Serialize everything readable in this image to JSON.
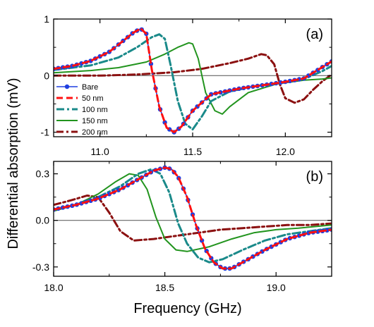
{
  "ylabel": "Differential absorption  (mV)",
  "xlabel": "Frequency (GHz)",
  "legend_position": "bottom-left of panel a",
  "chart_data": [
    {
      "type": "line",
      "panel_label": "(a)",
      "xlim": [
        10.75,
        12.25
      ],
      "ylim": [
        -1.08,
        1.0
      ],
      "xticks": [
        11.0,
        11.5,
        12.0
      ],
      "xtick_labels": [
        "11.0",
        "11.5",
        "12.0"
      ],
      "yticks": [
        -1,
        0,
        1
      ],
      "ytick_labels": [
        "-1",
        "0",
        "1"
      ],
      "zero_line": true,
      "series": [
        {
          "name": "Bare",
          "color": "#1f3fe0",
          "style": "line-markers",
          "x": [
            10.75,
            10.85,
            10.95,
            11.05,
            11.12,
            11.18,
            11.22,
            11.25,
            11.28,
            11.32,
            11.36,
            11.4,
            11.44,
            11.5,
            11.6,
            11.75,
            11.9,
            12.0,
            12.1,
            12.2,
            12.25
          ],
          "y": [
            0.12,
            0.17,
            0.26,
            0.42,
            0.6,
            0.76,
            0.83,
            0.74,
            0.1,
            -0.55,
            -0.92,
            -1.0,
            -0.9,
            -0.62,
            -0.33,
            -0.23,
            -0.16,
            -0.11,
            -0.05,
            0.15,
            0.25
          ]
        },
        {
          "name": "50 nm",
          "color": "#ff1010",
          "style": "dashed",
          "x": [
            10.75,
            10.85,
            10.95,
            11.05,
            11.12,
            11.18,
            11.22,
            11.25,
            11.28,
            11.32,
            11.36,
            11.4,
            11.44,
            11.5,
            11.6,
            11.75,
            11.9,
            12.0,
            12.1,
            12.2,
            12.25
          ],
          "y": [
            0.12,
            0.17,
            0.26,
            0.42,
            0.6,
            0.76,
            0.83,
            0.74,
            0.1,
            -0.55,
            -0.92,
            -1.0,
            -0.9,
            -0.62,
            -0.33,
            -0.23,
            -0.16,
            -0.11,
            -0.05,
            0.15,
            0.25
          ]
        },
        {
          "name": "100 nm",
          "color": "#1a8a8a",
          "style": "dash-dot",
          "x": [
            10.75,
            10.95,
            11.1,
            11.2,
            11.28,
            11.32,
            11.35,
            11.38,
            11.42,
            11.46,
            11.5,
            11.55,
            11.6,
            11.7,
            11.85,
            12.0,
            12.1,
            12.2,
            12.25
          ],
          "y": [
            0.1,
            0.18,
            0.32,
            0.5,
            0.68,
            0.73,
            0.65,
            0.2,
            -0.45,
            -0.85,
            -0.95,
            -0.72,
            -0.45,
            -0.28,
            -0.18,
            -0.12,
            -0.06,
            0.08,
            0.17
          ]
        },
        {
          "name": "150 nm",
          "color": "#22941e",
          "style": "solid",
          "x": [
            10.75,
            10.95,
            11.1,
            11.25,
            11.35,
            11.42,
            11.48,
            11.5,
            11.53,
            11.57,
            11.62,
            11.66,
            11.7,
            11.8,
            11.95,
            12.1,
            12.2,
            12.25
          ],
          "y": [
            0.05,
            0.09,
            0.14,
            0.24,
            0.38,
            0.5,
            0.58,
            0.56,
            0.3,
            -0.3,
            -0.62,
            -0.68,
            -0.55,
            -0.3,
            -0.15,
            -0.08,
            -0.06,
            -0.04
          ]
        },
        {
          "name": "200 nm",
          "color": "#8b1010",
          "style": "dash-dot-thick",
          "x": [
            10.75,
            11.0,
            11.2,
            11.4,
            11.55,
            11.7,
            11.8,
            11.87,
            11.9,
            11.94,
            11.97,
            12.0,
            12.05,
            12.1,
            12.15,
            12.2,
            12.25
          ],
          "y": [
            0.0,
            0.0,
            0.02,
            0.06,
            0.12,
            0.22,
            0.3,
            0.38,
            0.36,
            0.2,
            -0.15,
            -0.4,
            -0.48,
            -0.42,
            -0.25,
            -0.1,
            0.02
          ]
        }
      ]
    },
    {
      "type": "line",
      "panel_label": "(b)",
      "xlim": [
        18.0,
        19.25
      ],
      "ylim": [
        -0.36,
        0.38
      ],
      "xticks": [
        18.0,
        18.5,
        19.0
      ],
      "xtick_labels": [
        "18.0",
        "18.5",
        "19.0"
      ],
      "yticks": [
        -0.3,
        0.0,
        0.3
      ],
      "ytick_labels": [
        "-0.3",
        "0.0",
        "0.3"
      ],
      "zero_line": true,
      "series": [
        {
          "name": "Bare",
          "color": "#1f3fe0",
          "style": "line-markers",
          "x": [
            18.0,
            18.1,
            18.2,
            18.3,
            18.4,
            18.45,
            18.5,
            18.53,
            18.56,
            18.6,
            18.64,
            18.68,
            18.72,
            18.76,
            18.8,
            18.85,
            18.95,
            19.05,
            19.15,
            19.25
          ],
          "y": [
            0.07,
            0.1,
            0.14,
            0.2,
            0.28,
            0.32,
            0.34,
            0.33,
            0.28,
            0.15,
            -0.03,
            -0.18,
            -0.27,
            -0.31,
            -0.31,
            -0.27,
            -0.19,
            -0.12,
            -0.08,
            -0.06
          ]
        },
        {
          "name": "50 nm",
          "color": "#ff1010",
          "style": "dashed",
          "x": [
            18.0,
            18.1,
            18.2,
            18.3,
            18.4,
            18.45,
            18.5,
            18.53,
            18.56,
            18.6,
            18.64,
            18.68,
            18.72,
            18.76,
            18.8,
            18.85,
            18.95,
            19.05,
            19.15,
            19.25
          ],
          "y": [
            0.07,
            0.1,
            0.14,
            0.2,
            0.28,
            0.32,
            0.34,
            0.33,
            0.28,
            0.15,
            -0.03,
            -0.18,
            -0.27,
            -0.31,
            -0.31,
            -0.27,
            -0.19,
            -0.12,
            -0.08,
            -0.06
          ]
        },
        {
          "name": "100 nm",
          "color": "#1a8a8a",
          "style": "dash-dot",
          "x": [
            18.0,
            18.1,
            18.2,
            18.3,
            18.38,
            18.44,
            18.48,
            18.52,
            18.56,
            18.6,
            18.65,
            18.7,
            18.76,
            18.85,
            18.95,
            19.05,
            19.15,
            19.25
          ],
          "y": [
            0.07,
            0.1,
            0.15,
            0.22,
            0.3,
            0.33,
            0.3,
            0.18,
            -0.02,
            -0.15,
            -0.24,
            -0.27,
            -0.25,
            -0.19,
            -0.13,
            -0.09,
            -0.07,
            -0.05
          ]
        },
        {
          "name": "150 nm",
          "color": "#22941e",
          "style": "solid",
          "x": [
            18.0,
            18.1,
            18.2,
            18.28,
            18.34,
            18.38,
            18.42,
            18.46,
            18.5,
            18.55,
            18.6,
            18.7,
            18.8,
            18.9,
            19.0,
            19.1,
            19.25
          ],
          "y": [
            0.06,
            0.1,
            0.17,
            0.25,
            0.3,
            0.29,
            0.2,
            0.02,
            -0.12,
            -0.19,
            -0.2,
            -0.17,
            -0.12,
            -0.08,
            -0.06,
            -0.05,
            -0.03
          ]
        },
        {
          "name": "200 nm",
          "color": "#8b1010",
          "style": "dash-dot-thick",
          "x": [
            18.0,
            18.08,
            18.15,
            18.2,
            18.25,
            18.3,
            18.36,
            18.45,
            18.55,
            18.65,
            18.75,
            18.85,
            18.95,
            19.05,
            19.15,
            19.25
          ],
          "y": [
            0.1,
            0.13,
            0.16,
            0.15,
            0.05,
            -0.07,
            -0.13,
            -0.12,
            -0.1,
            -0.08,
            -0.06,
            -0.05,
            -0.04,
            -0.03,
            -0.03,
            -0.02
          ]
        }
      ]
    }
  ]
}
